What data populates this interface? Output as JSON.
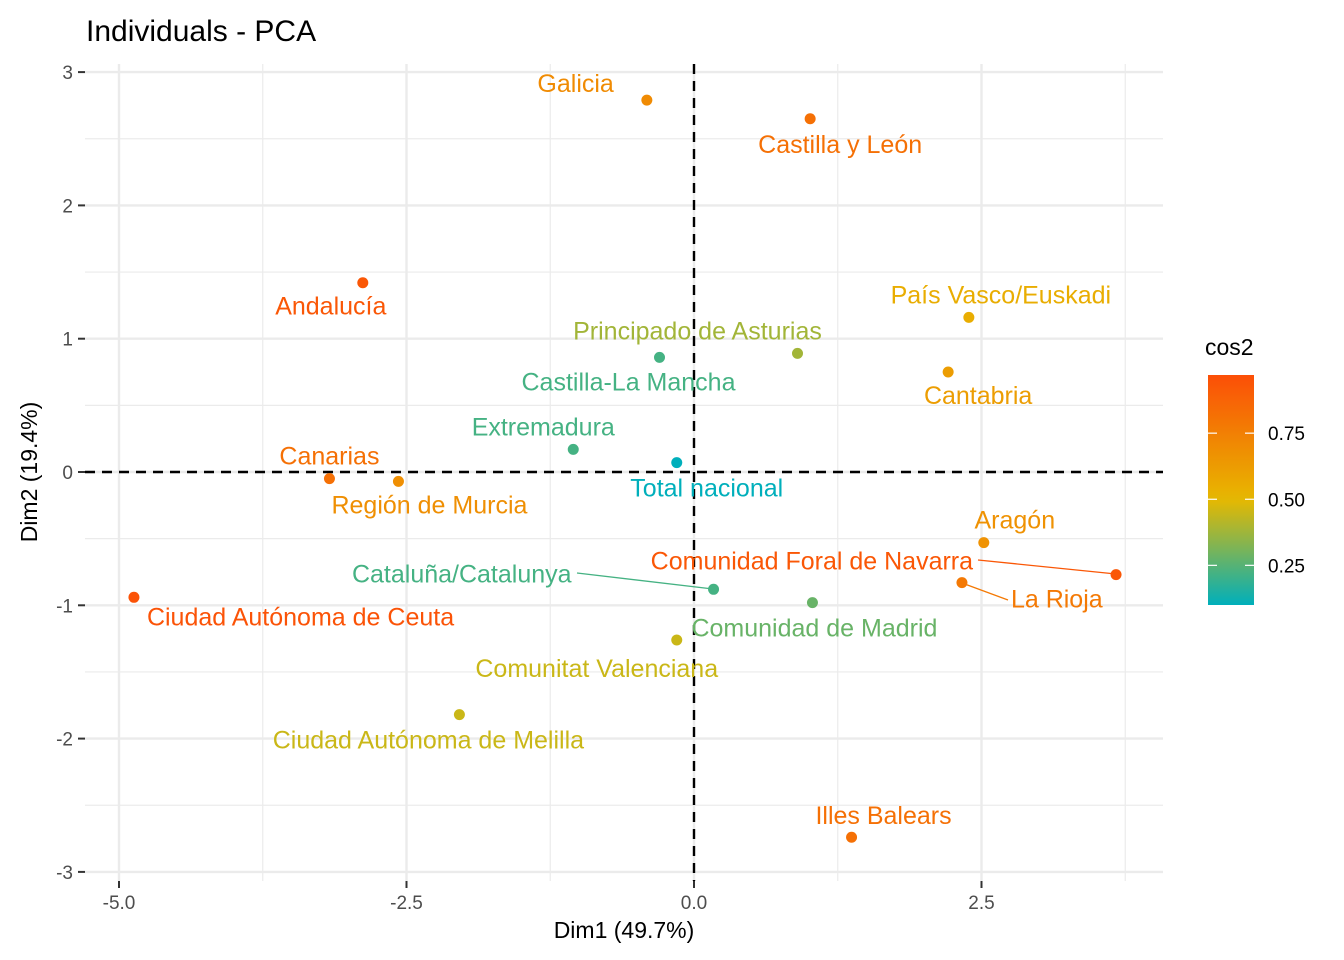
{
  "chart_data": {
    "type": "scatter",
    "title": "Individuals - PCA",
    "xlabel": "Dim1 (49.7%)",
    "ylabel": "Dim2 (19.4%)",
    "xlim": [
      -5.3,
      4.05
    ],
    "ylim": [
      -3.07,
      3.06
    ],
    "xticks": [
      -5.0,
      -2.5,
      0.0,
      2.5
    ],
    "xtick_labels": [
      "-5.0",
      "-2.5",
      "0.0",
      "2.5"
    ],
    "yticks": [
      3,
      2,
      1,
      0,
      -1,
      -2,
      -3
    ],
    "ytick_labels": [
      "3",
      "2",
      "1",
      "0",
      "-1",
      "-2",
      "-3"
    ],
    "grid": true,
    "reference_lines": {
      "x": 0,
      "y": 0,
      "style": "dashed"
    },
    "color_legend": {
      "title": "cos2",
      "position": "right",
      "ticks": [
        0.25,
        0.5,
        0.75
      ],
      "tick_labels": [
        "0.25",
        "0.50",
        "0.75"
      ],
      "range": [
        0.1,
        0.97
      ],
      "colors": {
        "low": "#00AFBB",
        "mid": "#E7B800",
        "high": "#FC4E07"
      },
      "midpoint": 0.5
    },
    "points": [
      {
        "label": "Galicia",
        "x": -0.41,
        "y": 2.79,
        "cos2": 0.7,
        "label_pos": "above-left"
      },
      {
        "label": "Castilla y León",
        "x": 1.01,
        "y": 2.65,
        "cos2": 0.82,
        "label_pos": "below"
      },
      {
        "label": "Andalucía",
        "x": -2.88,
        "y": 1.42,
        "cos2": 0.93,
        "label_pos": "below"
      },
      {
        "label": "País Vasco/Euskadi",
        "x": 2.39,
        "y": 1.16,
        "cos2": 0.55,
        "label_pos": "above"
      },
      {
        "label": "Principado de Asturias",
        "x": 0.9,
        "y": 0.89,
        "cos2": 0.38,
        "label_pos": "above-left"
      },
      {
        "label": "Castilla-La Mancha",
        "x": -0.3,
        "y": 0.86,
        "cos2": 0.22,
        "label_pos": "below"
      },
      {
        "label": "Cantabria",
        "x": 2.21,
        "y": 0.75,
        "cos2": 0.62,
        "label_pos": "below"
      },
      {
        "label": "Extremadura",
        "x": -1.05,
        "y": 0.17,
        "cos2": 0.22,
        "label_pos": "above"
      },
      {
        "label": "Total nacional",
        "x": -0.15,
        "y": 0.07,
        "cos2": 0.08,
        "label_pos": "below"
      },
      {
        "label": "Canarias",
        "x": -3.17,
        "y": -0.05,
        "cos2": 0.82,
        "label_pos": "above"
      },
      {
        "label": "Región de Murcia",
        "x": -2.57,
        "y": -0.07,
        "cos2": 0.68,
        "label_pos": "below"
      },
      {
        "label": "Aragón",
        "x": 2.52,
        "y": -0.53,
        "cos2": 0.67,
        "label_pos": "above"
      },
      {
        "label": "Comunidad Foral de Navarra",
        "x": 3.67,
        "y": -0.77,
        "cos2": 0.93,
        "label_pos": "segment-left"
      },
      {
        "label": "La Rioja",
        "x": 2.33,
        "y": -0.83,
        "cos2": 0.78,
        "label_pos": "segment-right"
      },
      {
        "label": "Cataluña/Catalunya",
        "x": 0.17,
        "y": -0.88,
        "cos2": 0.22,
        "label_pos": "segment-left"
      },
      {
        "label": "Comunidad de Madrid",
        "x": 1.03,
        "y": -0.98,
        "cos2": 0.28,
        "label_pos": "below"
      },
      {
        "label": "Ciudad Autónoma de Ceuta",
        "x": -4.87,
        "y": -0.94,
        "cos2": 0.95,
        "label_pos": "below-right"
      },
      {
        "label": "Comunitat Valenciana",
        "x": -0.15,
        "y": -1.26,
        "cos2": 0.45,
        "label_pos": "below-left"
      },
      {
        "label": "Ciudad Autónoma de Melilla",
        "x": -2.04,
        "y": -1.82,
        "cos2": 0.45,
        "label_pos": "below"
      },
      {
        "label": "Illes Balears",
        "x": 1.37,
        "y": -2.74,
        "cos2": 0.82,
        "label_pos": "above"
      }
    ]
  }
}
